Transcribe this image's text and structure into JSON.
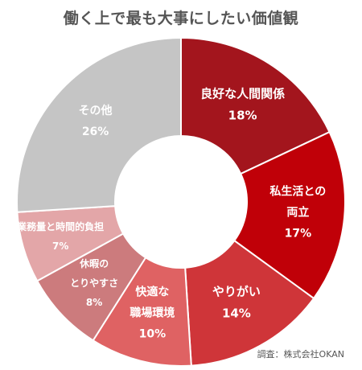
{
  "title": "働く上で最も大事にしたい価値観",
  "source": "調査：株式会社OKAN",
  "chart_data": {
    "type": "pie",
    "variant": "donut",
    "unit": "%",
    "categories": [
      "良好な人間関係",
      "私生活との両立",
      "やりがい",
      "快適な職場環境",
      "休暇のとりやすさ",
      "業務量と時間的負担",
      "その他"
    ],
    "label_lines": [
      [
        "良好な人間関係"
      ],
      [
        "私生活との",
        "両立"
      ],
      [
        "やりがい"
      ],
      [
        "快適な",
        "職場環境"
      ],
      [
        "休暇の",
        "とりやすさ"
      ],
      [
        "業務量と時間的負担"
      ],
      [
        "その他"
      ]
    ],
    "values": [
      18,
      17,
      14,
      10,
      8,
      7,
      26
    ],
    "colors": [
      "#a3151d",
      "#c00008",
      "#cf3539",
      "#df6263",
      "#cc7b7d",
      "#e3a6a8",
      "#c5c5c5"
    ]
  }
}
